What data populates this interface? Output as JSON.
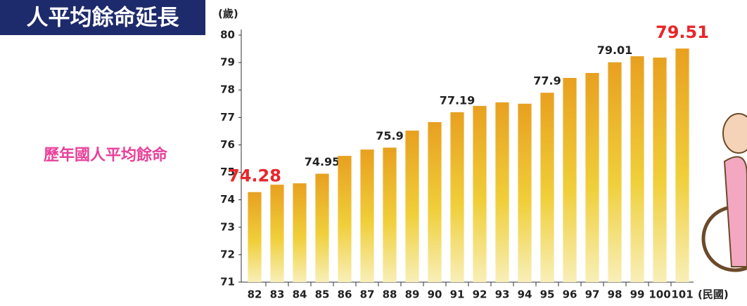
{
  "header": {
    "title": "人平均餘命延長",
    "subtitle": "歷年國人平均餘命"
  },
  "chart_data": {
    "type": "bar",
    "y_label": "(歲)",
    "x_label": "(民國)",
    "categories": [
      "82",
      "83",
      "84",
      "85",
      "86",
      "87",
      "88",
      "89",
      "90",
      "91",
      "92",
      "93",
      "94",
      "95",
      "96",
      "97",
      "98",
      "99",
      "100",
      "101"
    ],
    "values": [
      74.28,
      74.55,
      74.6,
      74.95,
      75.6,
      75.83,
      75.9,
      76.52,
      76.83,
      77.19,
      77.42,
      77.55,
      77.5,
      77.9,
      78.44,
      78.62,
      79.01,
      79.23,
      79.18,
      79.51
    ],
    "value_labels": [
      "74.28",
      null,
      null,
      "74.95",
      null,
      null,
      "75.9",
      null,
      null,
      "77.19",
      null,
      null,
      null,
      "77.9",
      null,
      null,
      "79.01",
      null,
      null,
      "79.51"
    ],
    "color": "#e8a020",
    "ylim": [
      71,
      80
    ],
    "yticks": [
      71,
      72,
      73,
      74,
      75,
      76,
      77,
      78,
      79,
      80
    ]
  }
}
